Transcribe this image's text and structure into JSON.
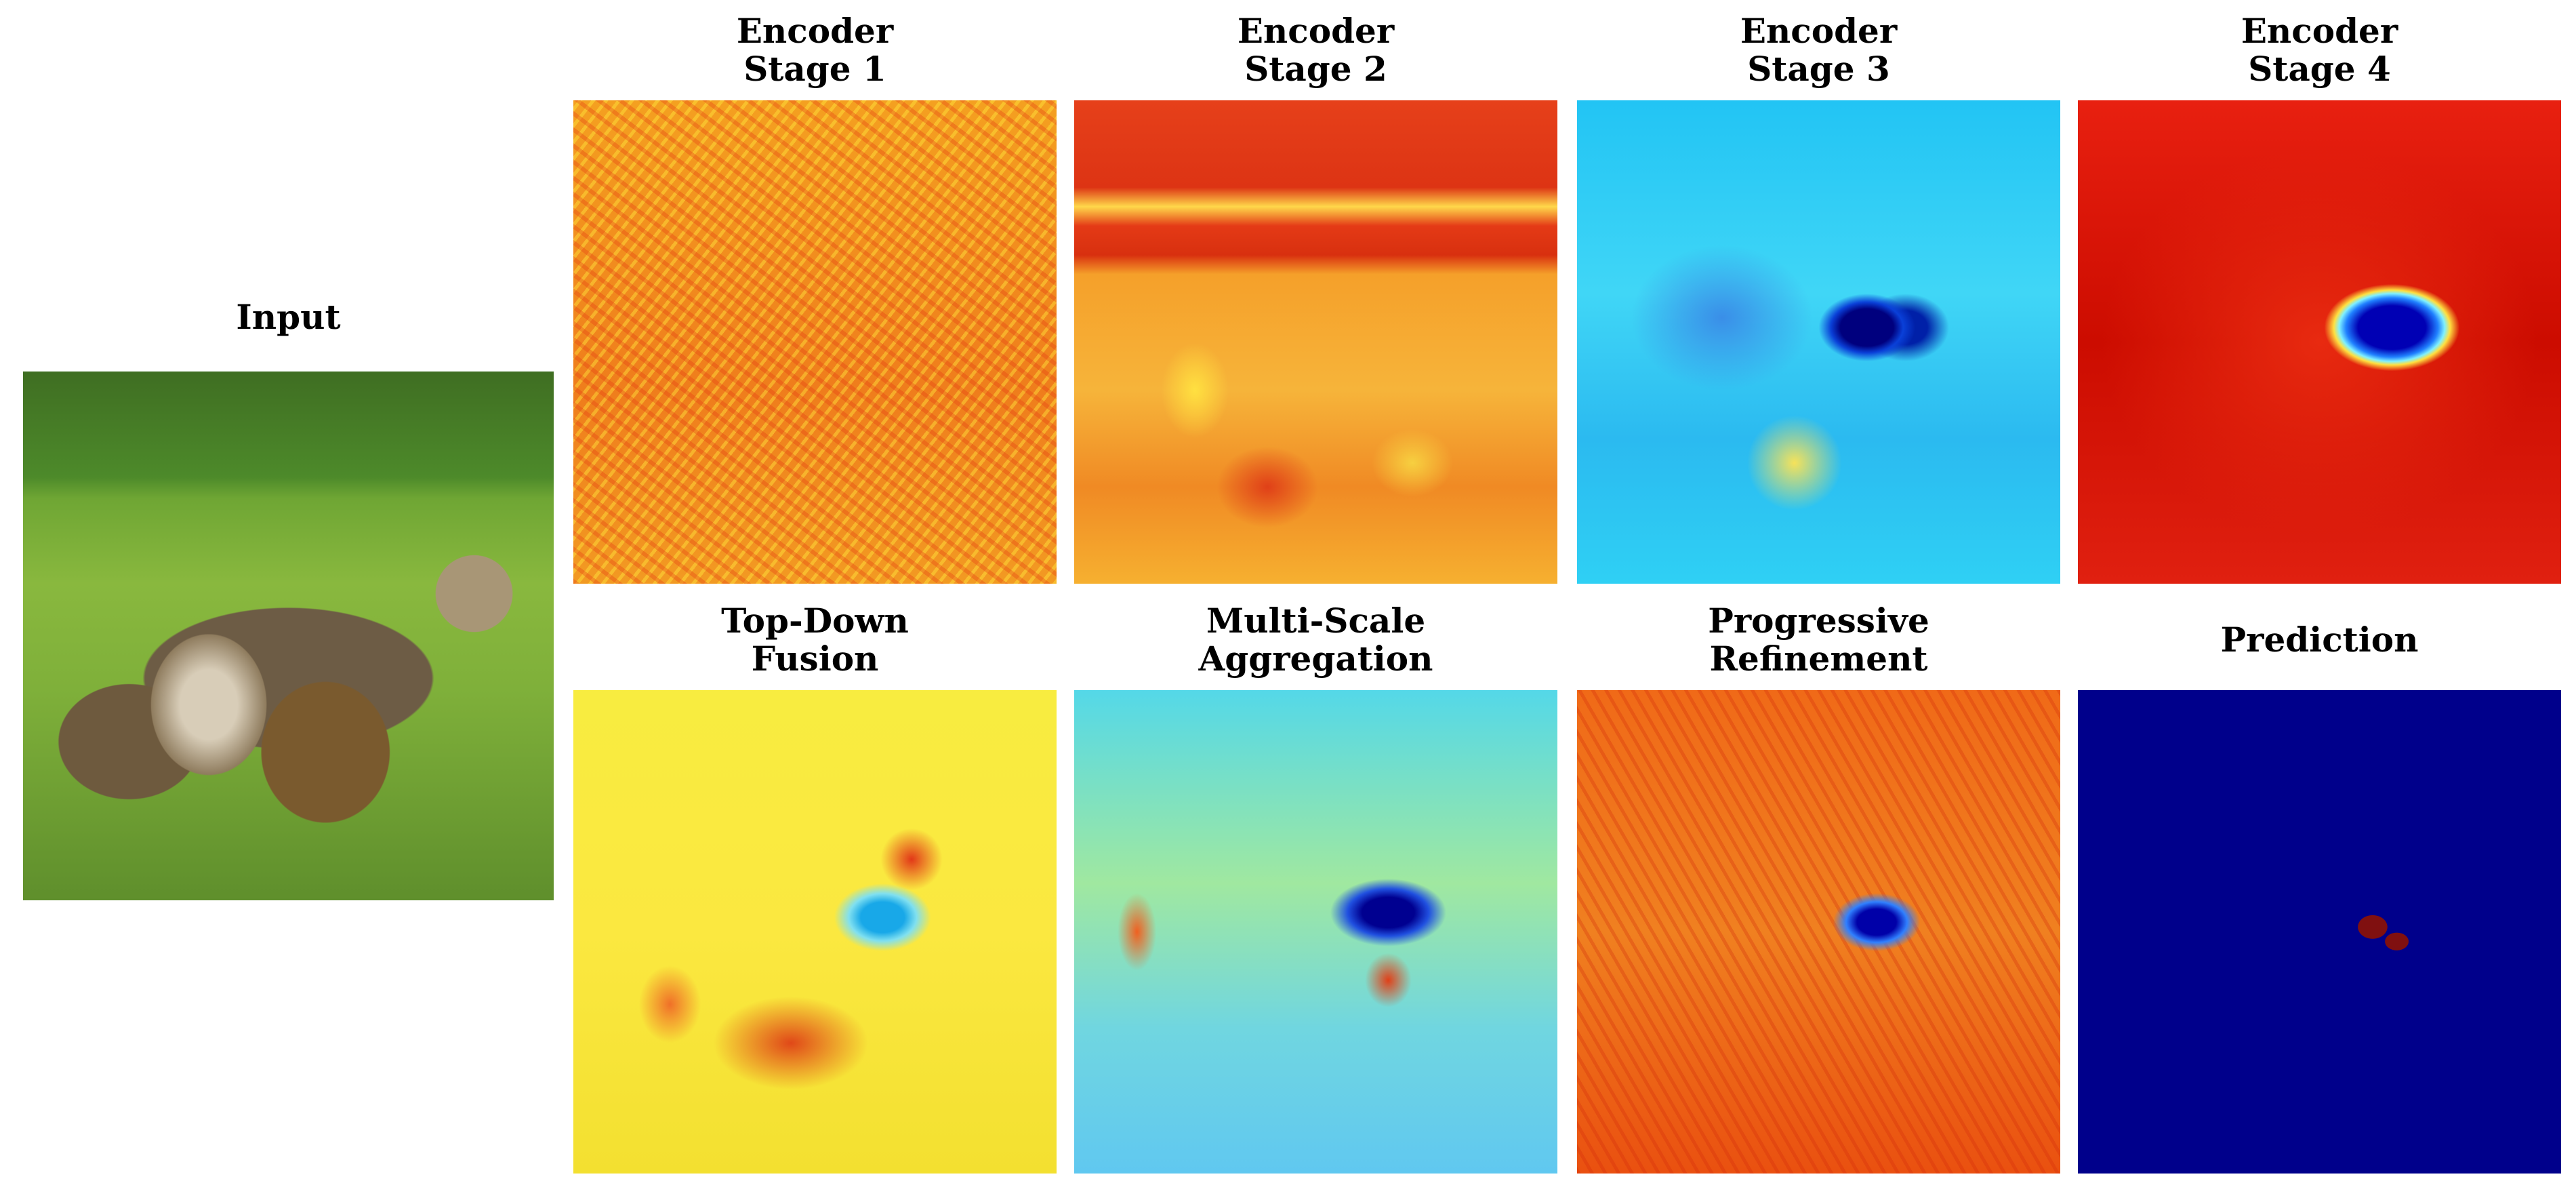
{
  "input": {
    "title": "Input"
  },
  "panels": [
    {
      "title": [
        "Encoder",
        "Stage 1"
      ]
    },
    {
      "title": [
        "Encoder",
        "Stage 2"
      ]
    },
    {
      "title": [
        "Encoder",
        "Stage 3"
      ]
    },
    {
      "title": [
        "Encoder",
        "Stage 4"
      ]
    },
    {
      "title": [
        "Top-Down",
        "Fusion"
      ]
    },
    {
      "title": [
        "Multi-Scale",
        "Aggregation"
      ]
    },
    {
      "title": [
        "Progressive",
        "Refinement"
      ]
    },
    {
      "title": [
        "Prediction"
      ]
    }
  ]
}
